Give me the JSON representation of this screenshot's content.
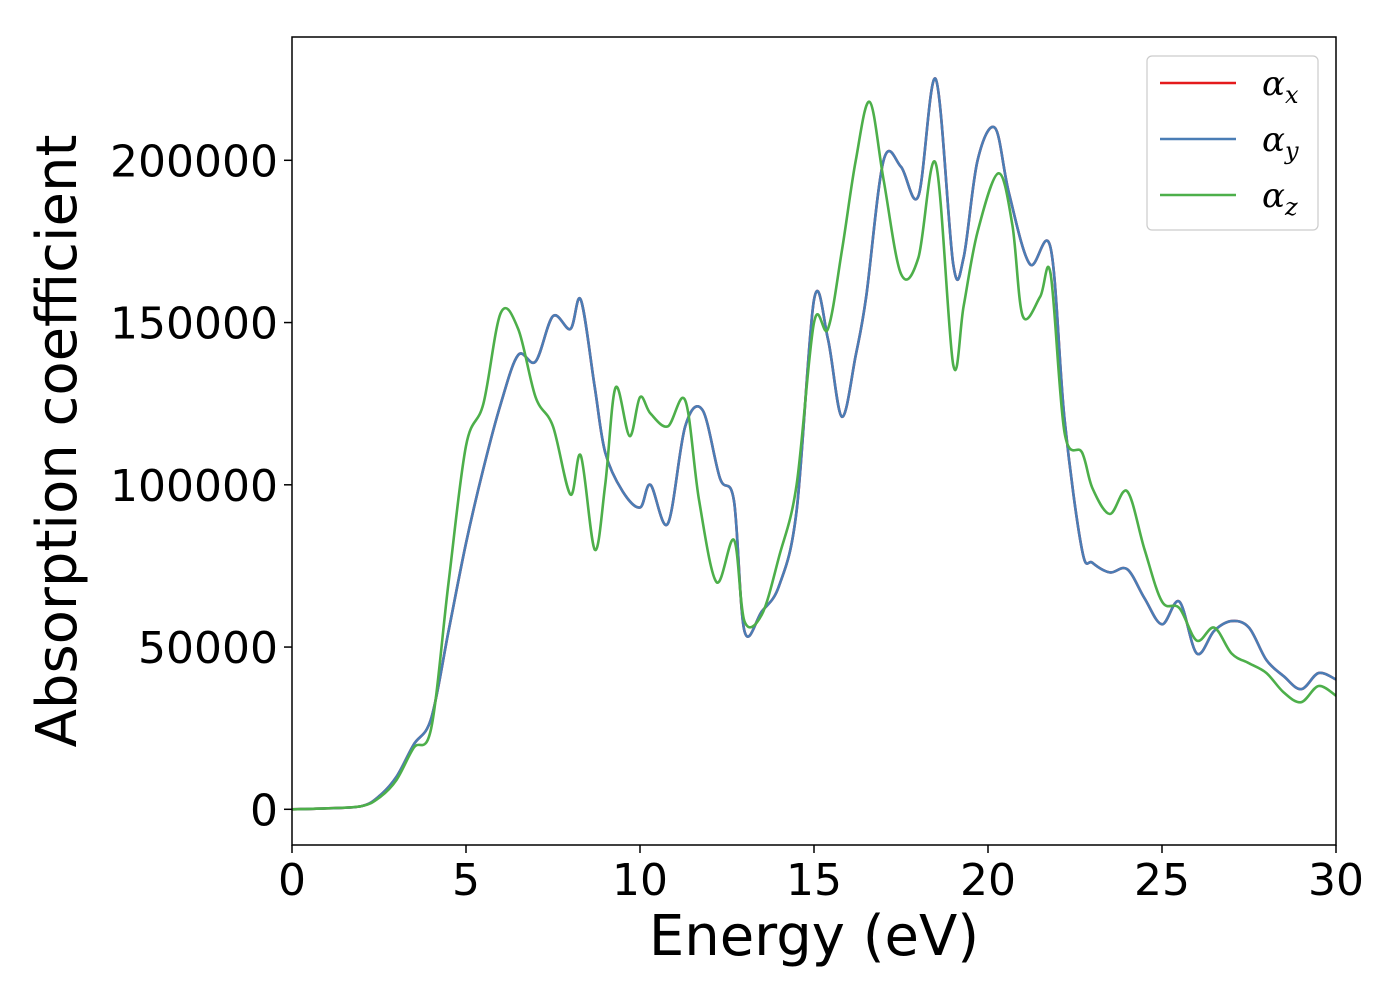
{
  "chart_data": {
    "type": "line",
    "xlabel": "Energy (eV)",
    "ylabel": "Absorption coefficient",
    "xlim": [
      0,
      30
    ],
    "ylim": [
      -11000,
      238000
    ],
    "xticks": [
      0,
      5,
      10,
      15,
      20,
      25,
      30
    ],
    "yticks": [
      0,
      50000,
      100000,
      150000,
      200000
    ],
    "grid": false,
    "legend_position": "top-right",
    "series": [
      {
        "name": "αx",
        "symbol": "α",
        "subscript": "x",
        "color": "#e41a1c",
        "x": [
          0,
          1,
          2,
          2.5,
          3,
          3.5,
          4,
          4.5,
          5,
          5.5,
          6,
          6.5,
          7,
          7.5,
          8,
          8.3,
          8.7,
          9,
          9.5,
          10,
          10.3,
          10.8,
          11.3,
          11.8,
          12.3,
          12.7,
          13,
          13.5,
          14,
          14.5,
          15,
          15.4,
          15.8,
          16.2,
          16.5,
          17,
          17.5,
          18,
          18.5,
          19,
          19.3,
          19.7,
          20.2,
          20.6,
          21.2,
          21.8,
          22.2,
          22.7,
          23,
          23.5,
          24,
          24.5,
          25,
          25.5,
          26,
          26.5,
          27,
          27.5,
          28,
          28.5,
          29,
          29.5,
          30
        ],
        "y": [
          0,
          300,
          1000,
          4000,
          10000,
          20000,
          28000,
          55000,
          82000,
          105000,
          125000,
          140000,
          138000,
          152000,
          148000,
          157000,
          130000,
          110000,
          98000,
          93000,
          100000,
          88000,
          118000,
          123000,
          102000,
          95000,
          55000,
          61000,
          69000,
          92000,
          157000,
          145000,
          121000,
          140000,
          158000,
          200000,
          198000,
          189000,
          225000,
          168000,
          170000,
          200000,
          210000,
          190000,
          168000,
          173000,
          120000,
          80000,
          76000,
          73000,
          74000,
          65000,
          57000,
          64000,
          48000,
          55000,
          58000,
          56000,
          46000,
          41000,
          37000,
          42000,
          40000
        ]
      },
      {
        "name": "αy",
        "symbol": "α",
        "subscript": "y",
        "color": "#4a7db5",
        "x": [
          0,
          1,
          2,
          2.5,
          3,
          3.5,
          4,
          4.5,
          5,
          5.5,
          6,
          6.5,
          7,
          7.5,
          8,
          8.3,
          8.7,
          9,
          9.5,
          10,
          10.3,
          10.8,
          11.3,
          11.8,
          12.3,
          12.7,
          13,
          13.5,
          14,
          14.5,
          15,
          15.4,
          15.8,
          16.2,
          16.5,
          17,
          17.5,
          18,
          18.5,
          19,
          19.3,
          19.7,
          20.2,
          20.6,
          21.2,
          21.8,
          22.2,
          22.7,
          23,
          23.5,
          24,
          24.5,
          25,
          25.5,
          26,
          26.5,
          27,
          27.5,
          28,
          28.5,
          29,
          29.5,
          30
        ],
        "y": [
          0,
          300,
          1000,
          4000,
          10000,
          20000,
          28000,
          55000,
          82000,
          105000,
          125000,
          140000,
          138000,
          152000,
          148000,
          157000,
          130000,
          110000,
          98000,
          93000,
          100000,
          88000,
          118000,
          123000,
          102000,
          95000,
          55000,
          61000,
          69000,
          92000,
          157000,
          145000,
          121000,
          140000,
          158000,
          200000,
          198000,
          189000,
          225000,
          168000,
          170000,
          200000,
          210000,
          190000,
          168000,
          173000,
          120000,
          80000,
          76000,
          73000,
          74000,
          65000,
          57000,
          64000,
          48000,
          55000,
          58000,
          56000,
          46000,
          41000,
          37000,
          42000,
          40000
        ]
      },
      {
        "name": "αz",
        "symbol": "α",
        "subscript": "z",
        "color": "#4daf4a",
        "x": [
          0,
          1,
          2,
          2.5,
          3,
          3.5,
          4,
          4.5,
          5,
          5.5,
          6,
          6.5,
          7,
          7.5,
          8,
          8.3,
          8.7,
          9,
          9.3,
          9.7,
          10,
          10.3,
          10.8,
          11.3,
          11.7,
          12.2,
          12.7,
          13,
          13.5,
          14,
          14.5,
          15,
          15.4,
          15.8,
          16.2,
          16.6,
          17,
          17.5,
          18,
          18.5,
          19,
          19.3,
          19.7,
          20.3,
          20.7,
          21,
          21.5,
          21.8,
          22.2,
          22.7,
          23,
          23.5,
          24,
          24.5,
          25,
          25.5,
          26,
          26.5,
          27,
          27.5,
          28,
          28.5,
          29,
          29.5,
          30
        ],
        "y": [
          0,
          300,
          1000,
          3500,
          9000,
          19000,
          25000,
          70000,
          112000,
          125000,
          153000,
          148000,
          127000,
          118000,
          97000,
          109000,
          80000,
          100000,
          130000,
          115000,
          127000,
          122000,
          118000,
          126000,
          95000,
          70000,
          83000,
          58000,
          60000,
          78000,
          100000,
          150000,
          148000,
          172000,
          200000,
          218000,
          194000,
          165000,
          170000,
          199000,
          137000,
          155000,
          178000,
          196000,
          180000,
          152000,
          158000,
          165000,
          116000,
          110000,
          99000,
          91000,
          98000,
          80000,
          64000,
          62000,
          52000,
          56000,
          48000,
          45000,
          42000,
          36000,
          33000,
          38000,
          35000
        ]
      }
    ]
  }
}
